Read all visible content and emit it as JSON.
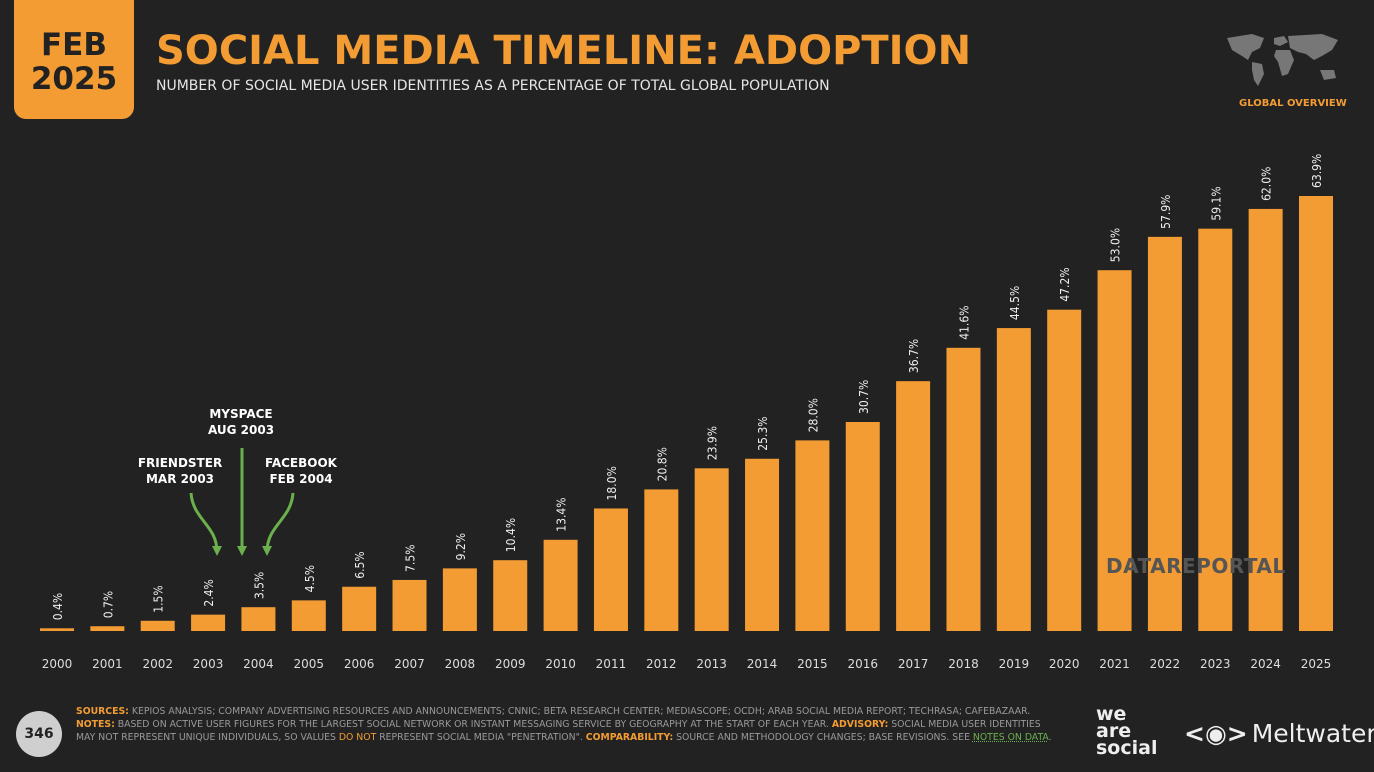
{
  "header": {
    "date_month": "FEB",
    "date_year": "2025",
    "title": "SOCIAL MEDIA TIMELINE: ADOPTION",
    "subtitle": "NUMBER OF SOCIAL MEDIA USER IDENTITIES AS A PERCENTAGE OF TOTAL GLOBAL POPULATION",
    "region": "GLOBAL OVERVIEW"
  },
  "chart_data": {
    "type": "bar",
    "title": "SOCIAL MEDIA TIMELINE: ADOPTION",
    "subtitle": "NUMBER OF SOCIAL MEDIA USER IDENTITIES AS A PERCENTAGE OF TOTAL GLOBAL POPULATION",
    "categories": [
      "2000",
      "2001",
      "2002",
      "2003",
      "2004",
      "2005",
      "2006",
      "2007",
      "2008",
      "2009",
      "2010",
      "2011",
      "2012",
      "2013",
      "2014",
      "2015",
      "2016",
      "2017",
      "2018",
      "2019",
      "2020",
      "2021",
      "2022",
      "2023",
      "2024",
      "2025"
    ],
    "values": [
      0.4,
      0.7,
      1.5,
      2.4,
      3.5,
      4.5,
      6.5,
      7.5,
      9.2,
      10.4,
      13.4,
      18.0,
      20.8,
      23.9,
      25.3,
      28.0,
      30.7,
      36.7,
      41.6,
      44.5,
      47.2,
      53.0,
      57.9,
      59.1,
      62.0,
      63.9
    ],
    "data_labels": [
      "0.4%",
      "0.7%",
      "1.5%",
      "2.4%",
      "3.5%",
      "4.5%",
      "6.5%",
      "7.5%",
      "9.2%",
      "10.4%",
      "13.4%",
      "18.0%",
      "20.8%",
      "23.9%",
      "25.3%",
      "28.0%",
      "30.7%",
      "36.7%",
      "41.6%",
      "44.5%",
      "47.2%",
      "53.0%",
      "57.9%",
      "59.1%",
      "62.0%",
      "63.9%"
    ],
    "ylim": [
      0,
      64
    ],
    "grid": false,
    "bar_color": "#f39c33",
    "annotations": [
      {
        "lines": [
          "FRIENDSTER",
          "MAR 2003"
        ],
        "x": "2003"
      },
      {
        "lines": [
          "MYSPACE",
          "AUG 2003"
        ],
        "x": "2003.6"
      },
      {
        "lines": [
          "FACEBOOK",
          "FEB 2004"
        ],
        "x": "2004"
      }
    ],
    "annotation_color": "#6ab04c"
  },
  "watermark": "DATAREPORTAL",
  "footer": {
    "page_number": "346",
    "sources_label": "SOURCES:",
    "sources_text": " KEPIOS ANALYSIS; COMPANY ADVERTISING RESOURCES AND ANNOUNCEMENTS; CNNIC; BETA RESEARCH CENTER; MEDIASCOPE; OCDH; ARAB SOCIAL MEDIA REPORT; TECHRASA; CAFEBAZAAR.",
    "notes_label": "NOTES:",
    "notes_text": " BASED ON ACTIVE USER FIGURES FOR THE LARGEST SOCIAL NETWORK OR INSTANT MESSAGING SERVICE BY GEOGRAPHY AT THE START OF EACH YEAR. ",
    "advisory_label": "ADVISORY:",
    "advisory_text": " SOCIAL MEDIA USER IDENTITIES MAY NOT REPRESENT UNIQUE INDIVIDUALS, SO VALUES ",
    "do_not": "DO NOT",
    "advisory_text2": " REPRESENT SOCIAL MEDIA \"PENETRATION\". ",
    "comparability_label": "COMPARABILITY:",
    "comparability_text": " SOURCE AND METHODOLOGY CHANGES; BASE REVISIONS. SEE ",
    "notes_link": "NOTES ON DATA",
    "end": "."
  },
  "logos": {
    "we_are_social": [
      "we",
      "are",
      "social"
    ],
    "meltwater": "Meltwater"
  }
}
